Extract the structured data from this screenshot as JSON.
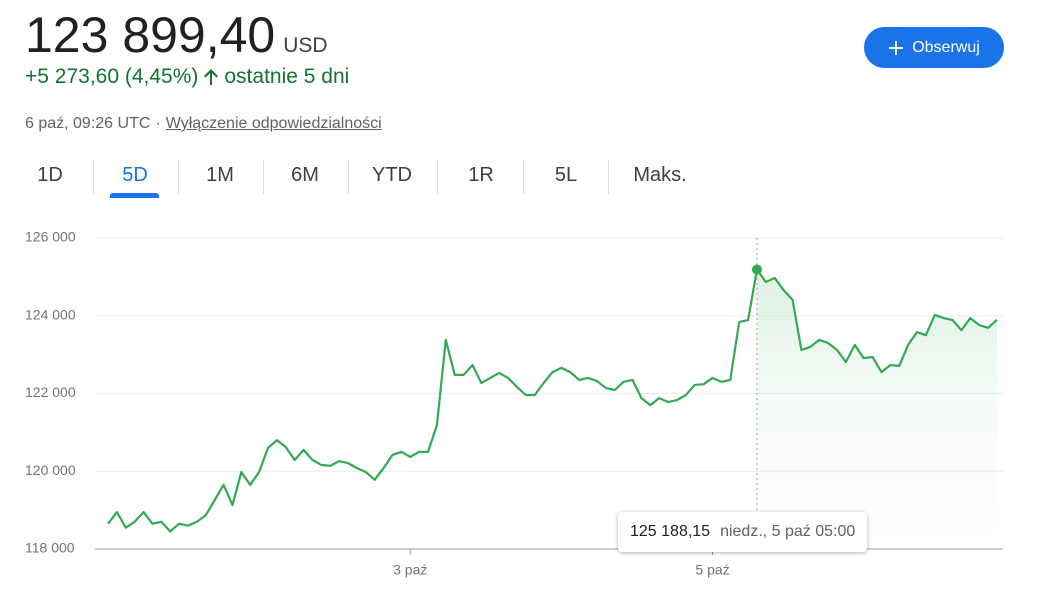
{
  "header": {
    "price": "123 899,40",
    "currency": "USD",
    "change": "+5 273,60 (4,45%)",
    "period": "ostatnie 5 dni",
    "timestamp": "6 paź, 09:26 UTC",
    "separator": "·",
    "disclaimer": "Wyłączenie odpowiedzialności",
    "follow_button": "Obserwuj"
  },
  "tabs": {
    "items": [
      "1D",
      "5D",
      "1M",
      "6M",
      "YTD",
      "1R",
      "5L",
      "Maks."
    ],
    "selected": 1
  },
  "chart_data": {
    "type": "line",
    "series": [
      {
        "color": "#34a853",
        "values": [
          118650,
          118950,
          118550,
          118700,
          118950,
          118650,
          118700,
          118450,
          118650,
          118600,
          118700,
          118870,
          119260,
          119650,
          119130,
          119980,
          119650,
          119980,
          120600,
          120800,
          120620,
          120290,
          120550,
          120290,
          120160,
          120140,
          120260,
          120210,
          120080,
          119980,
          119780,
          120080,
          120420,
          120500,
          120370,
          120500,
          120500,
          121190,
          123380,
          122480,
          122480,
          122730,
          122270,
          122400,
          122530,
          122400,
          122170,
          121960,
          121960,
          122270,
          122550,
          122660,
          122550,
          122350,
          122400,
          122320,
          122140,
          122090,
          122300,
          122350,
          121880,
          121700,
          121880,
          121780,
          121830,
          121960,
          122220,
          122240,
          122400,
          122300,
          122350,
          123840,
          123890,
          125188.15,
          124870,
          124970,
          124660,
          124410,
          123120,
          123200,
          123380,
          123300,
          123120,
          122810,
          123250,
          122910,
          122940,
          122550,
          122730,
          122710,
          123250,
          123580,
          123500,
          124020,
          123940,
          123890,
          123630,
          123940,
          123760,
          123690,
          123899.4
        ]
      }
    ],
    "xlim": [
      0,
      100
    ],
    "xticks": [
      {
        "value": 34,
        "label": "3 paź"
      },
      {
        "value": 68,
        "label": "5 paź"
      }
    ],
    "ylim": [
      118000,
      126000
    ],
    "yticks": [
      {
        "value": 118000,
        "label": "118 000"
      },
      {
        "value": 120000,
        "label": "120 000"
      },
      {
        "value": 122000,
        "label": "122 000"
      },
      {
        "value": 124000,
        "label": "124 000"
      },
      {
        "value": 126000,
        "label": "126 000"
      }
    ],
    "grid": true,
    "hover": {
      "value": 125188.15,
      "label": "125 188,15",
      "time": "niedz., 5 paź 05:00"
    }
  }
}
